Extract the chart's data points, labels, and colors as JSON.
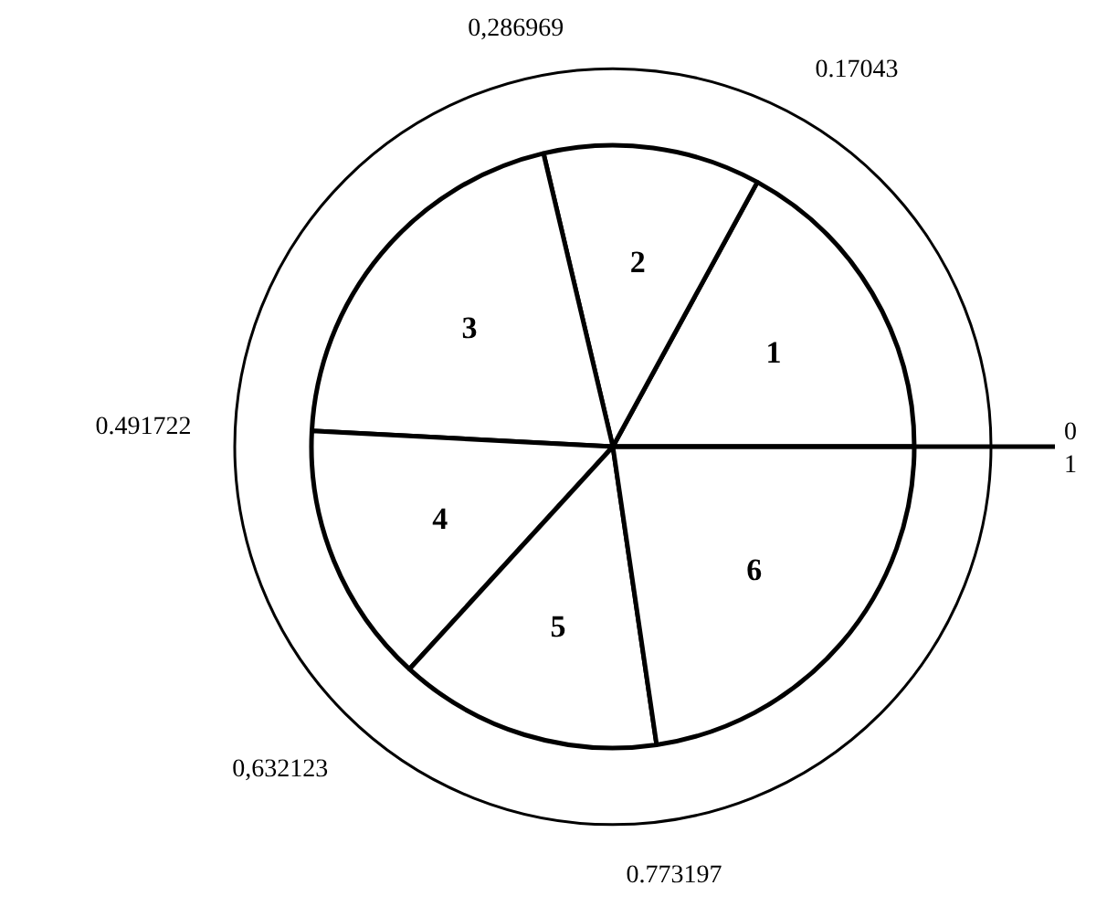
{
  "chart_data": {
    "type": "pie",
    "categories": [
      "1",
      "2",
      "3",
      "4",
      "5",
      "6"
    ],
    "values": [
      17.043,
      11.6539,
      20.4753,
      14.0401,
      14.1074,
      22.6803
    ],
    "colors": [
      "#ffffff",
      "#ffffff",
      "#ffffff",
      "#ffffff",
      "#ffffff",
      "#ffffff"
    ],
    "annotations": [
      "0",
      "0.17043",
      "0,286969",
      "0.491722",
      "0,632123",
      "0.773197",
      "1"
    ]
  }
}
